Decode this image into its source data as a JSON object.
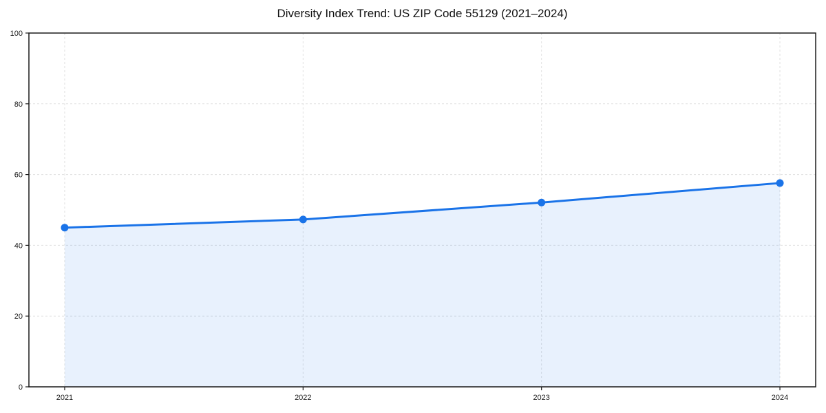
{
  "page": {
    "background": "#ffffff"
  },
  "chart_data": {
    "type": "line",
    "title": "Diversity Index Trend: US ZIP Code 55129 (2021–2024)",
    "categories": [
      "2021",
      "2022",
      "2023",
      "2024"
    ],
    "series": [
      {
        "name": "Diversity Index",
        "values": [
          45.0,
          47.3,
          52.1,
          57.6
        ]
      }
    ],
    "xlabel": "",
    "ylabel": "",
    "xlim": [
      2020.85,
      2024.15
    ],
    "ylim": [
      0,
      100
    ],
    "yticks": [
      0,
      20,
      40,
      60,
      80,
      100
    ],
    "grid": true,
    "grid_style": "dashed",
    "legend": "none",
    "area_fill": true,
    "markers": true,
    "colors": {
      "line": "#1a73e8",
      "marker": "#1a73e8",
      "area_fill": "rgba(26,115,232,0.10)",
      "grid": "#e0e0e0",
      "axis": "#1a1a1a",
      "tick_label": "#1a1a1a",
      "title": "#111111",
      "background": "#ffffff"
    }
  }
}
